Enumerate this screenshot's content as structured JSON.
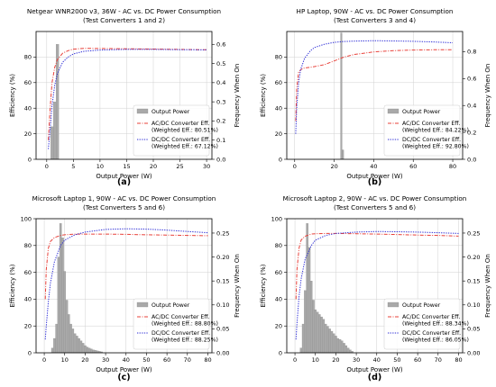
{
  "figure": {
    "background": "#ffffff"
  },
  "colors": {
    "ac": "#e8413a",
    "dc": "#2b2bd6",
    "bar": "#a9a9a9",
    "bar_edge": "#8c8c8c",
    "grid": "#d0d0d0"
  },
  "chart_data": [
    {
      "type": "line",
      "title": "Netgear WNR2000 v3, 36W - AC vs. DC Power Consumption",
      "subtitle": "(Test Converters 1 and 2)",
      "panel_label": "(a)",
      "xlabel": "Output Power (W)",
      "ylabel": "Efficiency (%)",
      "y2label": "Frequency When On",
      "xlim": [
        -2,
        31
      ],
      "ylim": [
        0,
        100
      ],
      "y2lim": [
        0,
        0.667
      ],
      "xticks": [
        0,
        5,
        10,
        15,
        20,
        25,
        30
      ],
      "yticks": [
        0,
        20,
        40,
        60,
        80
      ],
      "y2ticks": [
        0.0,
        0.1,
        0.2,
        0.3,
        0.4,
        0.5,
        0.6
      ],
      "y2ticklabels": [
        "0.0",
        "0.1",
        "0.2",
        "0.3",
        "0.4",
        "0.5",
        "0.6"
      ],
      "grid": true,
      "legend_position": "right",
      "series": [
        {
          "name": "AC/DC Converter Eff.",
          "name2": "(Weighted Eff.: 80.51%)",
          "color": "#e8413a",
          "dash": "dashdot",
          "x": [
            0.3,
            0.6,
            1,
            1.5,
            2,
            3,
            4,
            5,
            7,
            10,
            15,
            20,
            25,
            30
          ],
          "y": [
            15,
            38,
            60,
            72,
            78,
            83,
            85,
            86.2,
            86.8,
            86.7,
            86.5,
            86.3,
            86.0,
            85.7
          ]
        },
        {
          "name": "DC/DC Converter Eff.",
          "name2": "(Weighted Eff.: 67.12%)",
          "color": "#2b2bd6",
          "dash": "dotted",
          "x": [
            0.3,
            0.6,
            1,
            1.5,
            2,
            3,
            4,
            5,
            7,
            10,
            15,
            20,
            25,
            30
          ],
          "y": [
            8,
            22,
            42,
            58,
            67,
            76,
            80,
            82.5,
            84.5,
            85.5,
            86,
            86,
            85.8,
            85.6
          ]
        }
      ],
      "histogram": {
        "name": "Output Power",
        "bin_width": 0.5,
        "x": [
          1.0,
          1.5,
          2.0
        ],
        "y": [
          0.17,
          0.3,
          0.6
        ]
      }
    },
    {
      "type": "line",
      "title": "HP Laptop, 90W - AC vs. DC Power Consumption",
      "subtitle": "(Test Converters 3 and 4)",
      "panel_label": "(b)",
      "xlabel": "Output Power (W)",
      "ylabel": "Efficiency (%)",
      "y2label": "Frequency When On",
      "xlim": [
        -4,
        85
      ],
      "ylim": [
        0,
        100
      ],
      "y2lim": [
        0,
        0.95
      ],
      "xticks": [
        0,
        20,
        40,
        60,
        80
      ],
      "yticks": [
        0,
        20,
        40,
        60,
        80
      ],
      "y2ticks": [
        0.0,
        0.2,
        0.4,
        0.6,
        0.8
      ],
      "y2ticklabels": [
        "0.0",
        "0.2",
        "0.4",
        "0.6",
        "0.8"
      ],
      "grid": true,
      "legend_position": "lower-right",
      "series": [
        {
          "name": "AC/DC Converter Eff.",
          "name2": "(Weighted Eff.: 84.22%)",
          "color": "#e8413a",
          "dash": "dashdot",
          "x": [
            0.5,
            1,
            2,
            3,
            5,
            8,
            10,
            15,
            20,
            25,
            30,
            40,
            50,
            60,
            70,
            80
          ],
          "y": [
            30,
            55,
            68,
            70,
            71.5,
            72,
            72.5,
            74,
            77,
            80,
            82,
            84,
            85,
            85.5,
            85.7,
            85.8
          ]
        },
        {
          "name": "DC/DC Converter Eff.",
          "name2": "(Weighted Eff.: 92.80%)",
          "color": "#2b2bd6",
          "dash": "dotted",
          "x": [
            0.5,
            1,
            2,
            3,
            5,
            8,
            10,
            15,
            20,
            25,
            30,
            40,
            50,
            60,
            70,
            80
          ],
          "y": [
            20,
            40,
            60,
            70,
            79,
            85,
            87.5,
            90,
            91.5,
            92.2,
            92.5,
            92.8,
            92.6,
            92.3,
            91.8,
            91.2
          ]
        }
      ],
      "histogram": {
        "name": "Output Power",
        "bin_width": 0.8,
        "x": [
          23.6,
          24.4
        ],
        "y": [
          0.94,
          0.07
        ]
      }
    },
    {
      "type": "line",
      "title": "Microsoft Laptop 1, 90W - AC vs. DC Power Consumption",
      "subtitle": "(Test Converters 5 and 6)",
      "panel_label": "(c)",
      "xlabel": "Output Power (W)",
      "ylabel": "Efficiency (%)",
      "y2label": "Frequency When On",
      "xlim": [
        -4,
        82
      ],
      "ylim": [
        0,
        100
      ],
      "y2lim": [
        0,
        0.28
      ],
      "xticks": [
        0,
        10,
        20,
        30,
        40,
        50,
        60,
        70,
        80
      ],
      "yticks": [
        0,
        20,
        40,
        60,
        80,
        100
      ],
      "y2ticks": [
        0.0,
        0.05,
        0.1,
        0.15,
        0.2,
        0.25
      ],
      "y2ticklabels": [
        "0.00",
        "0.05",
        "0.10",
        "0.15",
        "0.20",
        "0.25"
      ],
      "grid": true,
      "legend_position": "lower-right",
      "series": [
        {
          "name": "AC/DC Converter Eff.",
          "name2": "(Weighted Eff.: 88.80%)",
          "color": "#e8413a",
          "dash": "dashdot",
          "x": [
            0.5,
            1,
            2,
            3,
            5,
            8,
            10,
            15,
            20,
            30,
            40,
            50,
            60,
            70,
            80
          ],
          "y": [
            40,
            62,
            78,
            83,
            86,
            87.5,
            88,
            88.5,
            88.5,
            88.5,
            88.3,
            88,
            87.8,
            87.5,
            87.3
          ]
        },
        {
          "name": "DC/DC Converter Eff.",
          "name2": "(Weighted Eff.: 88.25%)",
          "color": "#2b2bd6",
          "dash": "dotted",
          "x": [
            0.5,
            1,
            2,
            3,
            5,
            8,
            10,
            15,
            20,
            30,
            40,
            50,
            60,
            70,
            80
          ],
          "y": [
            10,
            20,
            38,
            52,
            68,
            80,
            84,
            88,
            90,
            92,
            92.5,
            92.2,
            91.5,
            90.5,
            89.5
          ]
        }
      ],
      "histogram": {
        "name": "Output Power",
        "bin_width": 1,
        "x": [
          4,
          5,
          6,
          7,
          8,
          9,
          10,
          11,
          12,
          13,
          14,
          15,
          16,
          17,
          18,
          19,
          20,
          21,
          22,
          23,
          24,
          25,
          26,
          27,
          28
        ],
        "y": [
          0.01,
          0.03,
          0.06,
          0.2,
          0.27,
          0.24,
          0.17,
          0.11,
          0.08,
          0.06,
          0.05,
          0.04,
          0.035,
          0.03,
          0.025,
          0.02,
          0.015,
          0.012,
          0.01,
          0.008,
          0.006,
          0.005,
          0.004,
          0.003,
          0.002
        ]
      }
    },
    {
      "type": "line",
      "title": "Microsoft Laptop 2, 90W - AC vs. DC Power Consumption",
      "subtitle": "(Test Converters 5 and 6)",
      "panel_label": "(d)",
      "xlabel": "Output Power (W)",
      "ylabel": "Efficiency (%)",
      "y2label": "Frequency When On",
      "xlim": [
        -4,
        82
      ],
      "ylim": [
        0,
        100
      ],
      "y2lim": [
        0,
        0.28
      ],
      "xticks": [
        0,
        10,
        20,
        30,
        40,
        50,
        60,
        70,
        80
      ],
      "yticks": [
        0,
        20,
        40,
        60,
        80,
        100
      ],
      "y2ticks": [
        0.0,
        0.05,
        0.1,
        0.15,
        0.2,
        0.25
      ],
      "y2ticklabels": [
        "0.00",
        "0.05",
        "0.10",
        "0.15",
        "0.20",
        "0.25"
      ],
      "grid": true,
      "legend_position": "lower-right",
      "series": [
        {
          "name": "AC/DC Converter Eff.",
          "name2": "(Weighted Eff.: 88.34%)",
          "color": "#e8413a",
          "dash": "dashdot",
          "x": [
            0.5,
            1,
            2,
            3,
            5,
            8,
            10,
            15,
            20,
            30,
            40,
            50,
            60,
            70,
            80
          ],
          "y": [
            40,
            62,
            78,
            84,
            87,
            88.5,
            88.8,
            89,
            89,
            88.8,
            88.5,
            88.2,
            87.8,
            87.5,
            87
          ]
        },
        {
          "name": "DC/DC Converter Eff.",
          "name2": "(Weighted Eff.: 86.05%)",
          "color": "#2b2bd6",
          "dash": "dotted",
          "x": [
            0.5,
            1,
            2,
            3,
            5,
            8,
            10,
            15,
            20,
            30,
            40,
            50,
            60,
            70,
            80
          ],
          "y": [
            10,
            22,
            42,
            55,
            70,
            80,
            84,
            87.5,
            89,
            90,
            90.5,
            90.3,
            90,
            89.5,
            89
          ]
        }
      ],
      "histogram": {
        "name": "Output Power",
        "bin_width": 1,
        "x": [
          3,
          4,
          5,
          6,
          7,
          8,
          9,
          10,
          11,
          12,
          13,
          14,
          15,
          16,
          17,
          18,
          19,
          20,
          21,
          22,
          23,
          24,
          25,
          26,
          27,
          28
        ],
        "y": [
          0.01,
          0.06,
          0.13,
          0.27,
          0.22,
          0.15,
          0.11,
          0.09,
          0.085,
          0.08,
          0.075,
          0.07,
          0.06,
          0.055,
          0.05,
          0.045,
          0.04,
          0.035,
          0.03,
          0.028,
          0.025,
          0.02,
          0.015,
          0.01,
          0.006,
          0.003
        ]
      }
    }
  ]
}
